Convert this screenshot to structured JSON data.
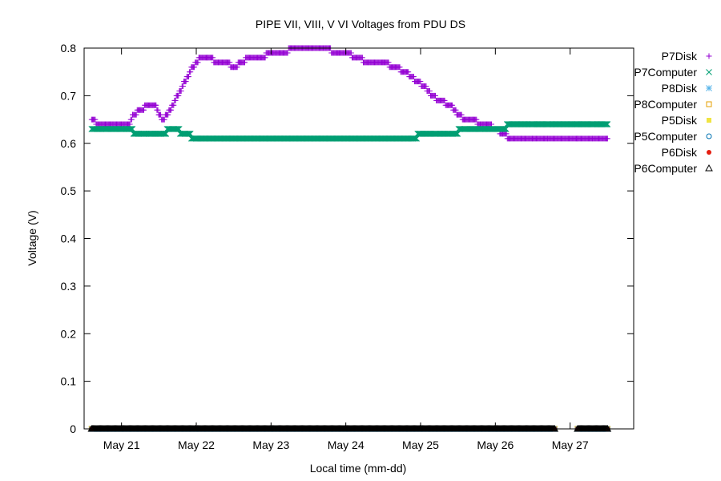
{
  "chart_data": {
    "type": "scatter",
    "title": "PIPE VII, VIII, V   VI Voltages from PDU    DS",
    "xlabel": "Local time (mm-dd)",
    "ylabel": "Voltage (V)",
    "xlim": [
      20.5,
      27.85
    ],
    "ylim": [
      0,
      0.8
    ],
    "grid": false,
    "legend_position": "top-right",
    "y_ticks": [
      {
        "value": 0,
        "label": "0"
      },
      {
        "value": 0.1,
        "label": "0.1"
      },
      {
        "value": 0.2,
        "label": "0.2"
      },
      {
        "value": 0.3,
        "label": "0.3"
      },
      {
        "value": 0.4,
        "label": "0.4"
      },
      {
        "value": 0.5,
        "label": "0.5"
      },
      {
        "value": 0.6,
        "label": "0.6"
      },
      {
        "value": 0.7,
        "label": "0.7"
      },
      {
        "value": 0.8,
        "label": "0.8"
      }
    ],
    "x_ticks": [
      {
        "value": 21,
        "label": "May 21"
      },
      {
        "value": 22,
        "label": "May 22"
      },
      {
        "value": 23,
        "label": "May 23"
      },
      {
        "value": 24,
        "label": "May 24"
      },
      {
        "value": 25,
        "label": "May 25"
      },
      {
        "value": 26,
        "label": "May 26"
      },
      {
        "value": 27,
        "label": "May 27"
      }
    ],
    "data_gap": [
      26.8,
      27.1
    ],
    "series": [
      {
        "name": "P7Disk",
        "marker": "plus",
        "color": "#9400d3",
        "x": [
          20.6,
          20.7,
          20.85,
          21.0,
          21.1,
          21.15,
          21.25,
          21.35,
          21.45,
          21.5,
          21.55,
          21.65,
          21.75,
          21.85,
          21.95,
          22.05,
          22.15,
          22.3,
          22.4,
          22.5,
          22.6,
          22.7,
          22.85,
          23.0,
          23.15,
          23.3,
          23.5,
          23.7,
          23.9,
          24.0,
          24.15,
          24.3,
          24.5,
          24.65,
          24.8,
          24.95,
          25.05,
          25.15,
          25.25,
          25.4,
          25.5,
          25.6,
          25.7,
          25.8,
          25.9,
          26.0,
          26.1,
          26.2,
          26.35,
          26.5,
          26.7,
          27.1,
          27.3,
          27.5
        ],
        "y": [
          0.65,
          0.64,
          0.64,
          0.64,
          0.64,
          0.66,
          0.67,
          0.68,
          0.68,
          0.66,
          0.65,
          0.67,
          0.7,
          0.73,
          0.76,
          0.78,
          0.78,
          0.77,
          0.77,
          0.76,
          0.77,
          0.78,
          0.78,
          0.79,
          0.79,
          0.8,
          0.8,
          0.8,
          0.79,
          0.79,
          0.78,
          0.77,
          0.77,
          0.76,
          0.75,
          0.73,
          0.72,
          0.7,
          0.69,
          0.68,
          0.66,
          0.65,
          0.65,
          0.64,
          0.64,
          0.63,
          0.62,
          0.61,
          0.61,
          0.61,
          0.61,
          0.61,
          0.61,
          0.61
        ]
      },
      {
        "name": "P7Computer",
        "marker": "cross",
        "color": "#009e73",
        "x": [
          20.6,
          20.8,
          21.0,
          21.1,
          21.2,
          21.3,
          21.4,
          21.5,
          21.7,
          21.85,
          22.0,
          22.3,
          22.6,
          22.9,
          23.2,
          23.5,
          23.8,
          24.1,
          24.4,
          24.7,
          24.9,
          25.0,
          25.2,
          25.4,
          25.6,
          25.8,
          26.0,
          26.3,
          26.5,
          26.7,
          27.1,
          27.3,
          27.5
        ],
        "y": [
          0.63,
          0.63,
          0.63,
          0.63,
          0.62,
          0.62,
          0.62,
          0.62,
          0.63,
          0.62,
          0.61,
          0.61,
          0.61,
          0.61,
          0.61,
          0.61,
          0.61,
          0.61,
          0.61,
          0.61,
          0.61,
          0.62,
          0.62,
          0.62,
          0.63,
          0.63,
          0.63,
          0.64,
          0.64,
          0.64,
          0.64,
          0.64,
          0.64
        ]
      },
      {
        "name": "P8Disk",
        "marker": "asterisk",
        "color": "#56b4e9",
        "x": [
          20.6,
          26.8,
          27.1,
          27.5
        ],
        "y": [
          0,
          0,
          0,
          0
        ]
      },
      {
        "name": "P8Computer",
        "marker": "square",
        "color": "#e69f00",
        "x": [
          20.6,
          26.8,
          27.1,
          27.5
        ],
        "y": [
          0,
          0,
          0,
          0
        ]
      },
      {
        "name": "P5Disk",
        "marker": "filled-square",
        "color": "#f0e442",
        "x": [
          20.6,
          26.8,
          27.1,
          27.5
        ],
        "y": [
          0,
          0,
          0,
          0
        ]
      },
      {
        "name": "P5Computer",
        "marker": "circle",
        "color": "#0072b2",
        "x": [
          20.6,
          26.8,
          27.1,
          27.5
        ],
        "y": [
          0,
          0,
          0,
          0
        ]
      },
      {
        "name": "P6Disk",
        "marker": "filled-circle",
        "color": "#e51e10",
        "x": [
          20.6,
          26.8,
          27.1,
          27.5
        ],
        "y": [
          0,
          0,
          0,
          0
        ]
      },
      {
        "name": "P6Computer",
        "marker": "triangle",
        "color": "#000000",
        "x": [
          20.6,
          26.8,
          27.1,
          27.5
        ],
        "y": [
          0,
          0,
          0,
          0
        ]
      }
    ]
  }
}
